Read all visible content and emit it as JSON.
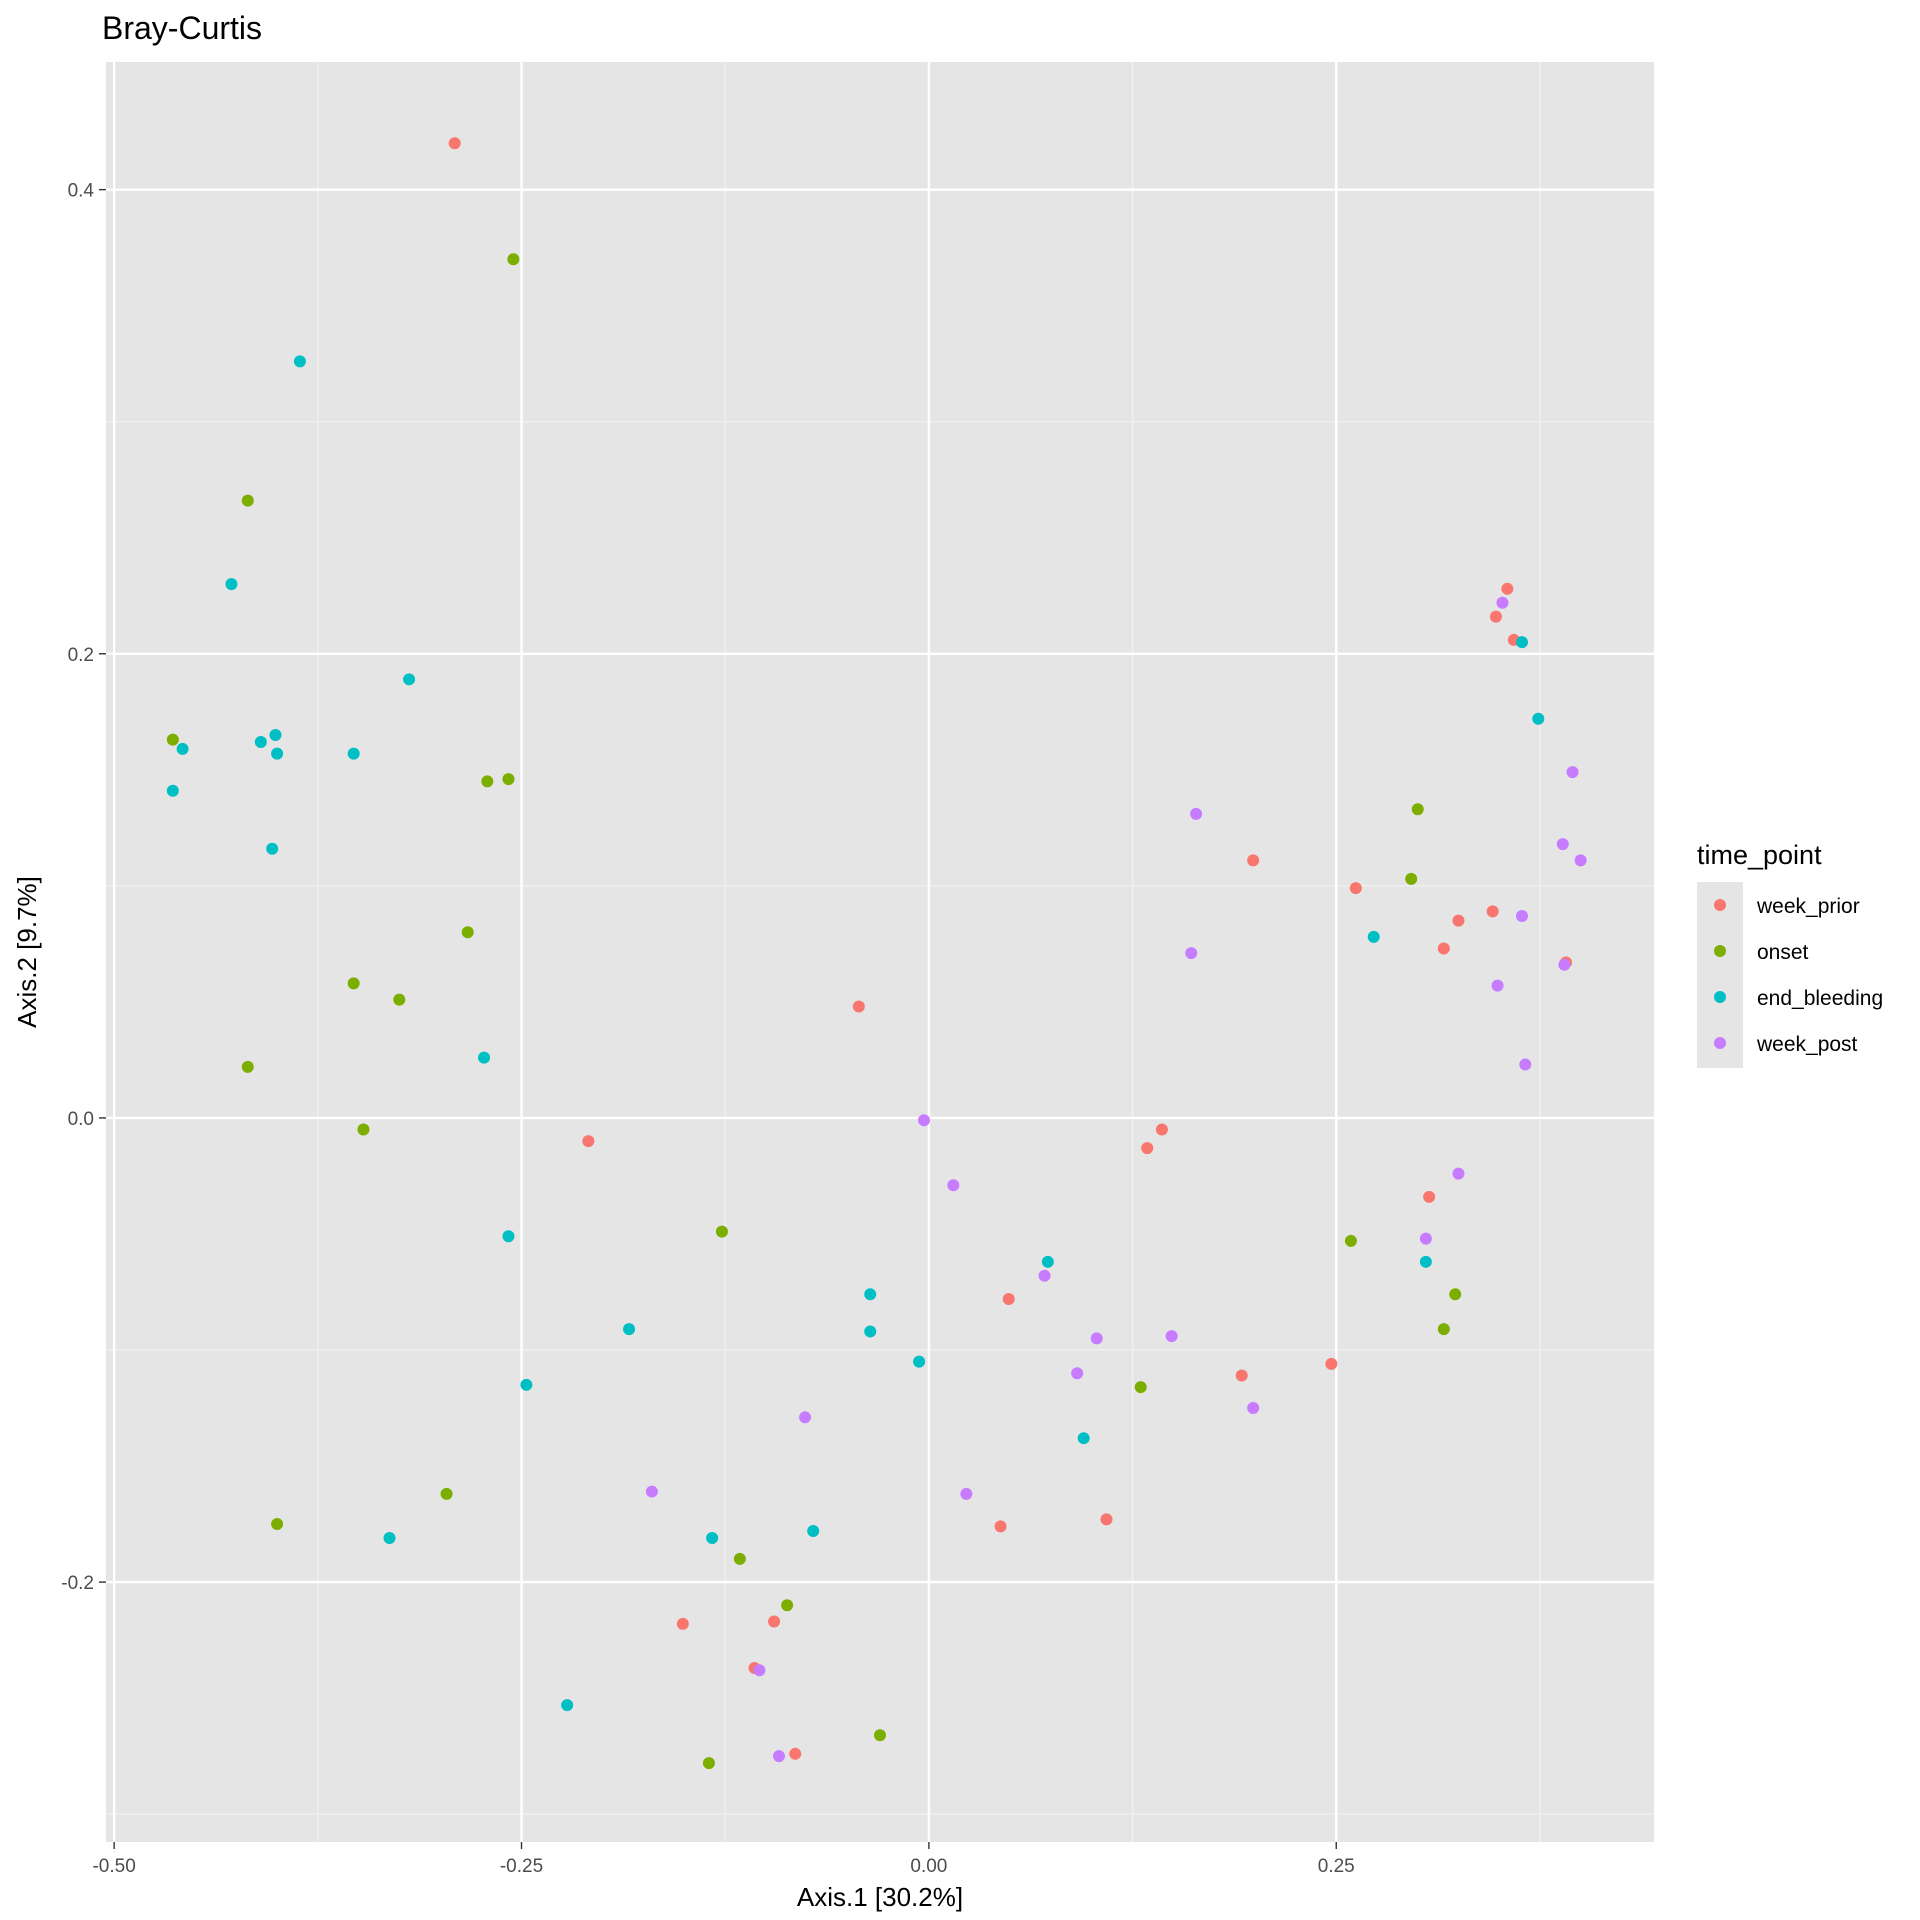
{
  "chart_data": {
    "type": "scatter",
    "title": "Bray-Curtis",
    "xlabel": "Axis.1   [30.2%]",
    "ylabel": "Axis.2   [9.7%]",
    "xlim": [
      -0.505,
      0.445
    ],
    "ylim": [
      -0.312,
      0.455
    ],
    "x_ticks": [
      -0.5,
      -0.25,
      0.0,
      0.25
    ],
    "x_tick_labels": [
      "-0.50",
      "-0.25",
      "0.00",
      "0.25"
    ],
    "y_ticks": [
      -0.2,
      0.0,
      0.2,
      0.4
    ],
    "y_tick_labels": [
      "-0.2",
      "0.0",
      "0.2",
      "0.4"
    ],
    "grid": true,
    "panel_background": "#e5e5e5",
    "legend": {
      "title": "time_point",
      "position": "right"
    },
    "series": [
      {
        "name": "week_prior",
        "color": "#F8766D",
        "points": [
          [
            -0.291,
            0.42
          ],
          [
            -0.043,
            0.048
          ],
          [
            -0.209,
            -0.01
          ],
          [
            0.199,
            0.111
          ],
          [
            0.262,
            0.099
          ],
          [
            0.325,
            0.085
          ],
          [
            0.346,
            0.089
          ],
          [
            0.316,
            0.073
          ],
          [
            0.391,
            0.067
          ],
          [
            0.348,
            0.216
          ],
          [
            0.355,
            0.228
          ],
          [
            0.359,
            0.206
          ],
          [
            0.143,
            -0.005
          ],
          [
            0.134,
            -0.013
          ],
          [
            0.307,
            -0.034
          ],
          [
            0.049,
            -0.078
          ],
          [
            0.192,
            -0.111
          ],
          [
            0.247,
            -0.106
          ],
          [
            0.044,
            -0.176
          ],
          [
            0.109,
            -0.173
          ],
          [
            -0.151,
            -0.218
          ],
          [
            -0.095,
            -0.217
          ],
          [
            -0.107,
            -0.237
          ],
          [
            -0.082,
            -0.274
          ]
        ]
      },
      {
        "name": "onset",
        "color": "#7CAE00",
        "points": [
          [
            -0.255,
            0.37
          ],
          [
            -0.418,
            0.266
          ],
          [
            -0.464,
            0.163
          ],
          [
            -0.271,
            0.145
          ],
          [
            -0.258,
            0.146
          ],
          [
            -0.283,
            0.08
          ],
          [
            -0.353,
            0.058
          ],
          [
            -0.325,
            0.051
          ],
          [
            -0.418,
            0.022
          ],
          [
            -0.347,
            -0.005
          ],
          [
            -0.127,
            -0.049
          ],
          [
            -0.296,
            -0.162
          ],
          [
            -0.4,
            -0.175
          ],
          [
            -0.116,
            -0.19
          ],
          [
            -0.087,
            -0.21
          ],
          [
            -0.03,
            -0.266
          ],
          [
            -0.135,
            -0.278
          ],
          [
            0.13,
            -0.116
          ],
          [
            0.259,
            -0.053
          ],
          [
            0.3,
            0.133
          ],
          [
            0.296,
            0.103
          ],
          [
            0.323,
            -0.076
          ],
          [
            0.316,
            -0.091
          ]
        ]
      },
      {
        "name": "end_bleeding",
        "color": "#00BFC4",
        "points": [
          [
            -0.386,
            0.326
          ],
          [
            -0.428,
            0.23
          ],
          [
            -0.319,
            0.189
          ],
          [
            -0.458,
            0.159
          ],
          [
            -0.464,
            0.141
          ],
          [
            -0.41,
            0.162
          ],
          [
            -0.401,
            0.165
          ],
          [
            -0.4,
            0.157
          ],
          [
            -0.353,
            0.157
          ],
          [
            -0.403,
            0.116
          ],
          [
            -0.273,
            0.026
          ],
          [
            -0.258,
            -0.051
          ],
          [
            -0.184,
            -0.091
          ],
          [
            -0.247,
            -0.115
          ],
          [
            -0.331,
            -0.181
          ],
          [
            -0.222,
            -0.253
          ],
          [
            -0.133,
            -0.181
          ],
          [
            -0.071,
            -0.178
          ],
          [
            -0.036,
            -0.076
          ],
          [
            -0.036,
            -0.092
          ],
          [
            -0.006,
            -0.105
          ],
          [
            0.073,
            -0.062
          ],
          [
            0.095,
            -0.138
          ],
          [
            0.273,
            0.078
          ],
          [
            0.305,
            -0.062
          ],
          [
            0.364,
            0.205
          ],
          [
            0.374,
            0.172
          ]
        ]
      },
      {
        "name": "week_post",
        "color": "#C77CFF",
        "points": [
          [
            -0.003,
            -0.001
          ],
          [
            0.015,
            -0.029
          ],
          [
            0.071,
            -0.068
          ],
          [
            0.103,
            -0.095
          ],
          [
            0.149,
            -0.094
          ],
          [
            0.091,
            -0.11
          ],
          [
            0.199,
            -0.125
          ],
          [
            -0.076,
            -0.129
          ],
          [
            -0.17,
            -0.161
          ],
          [
            0.023,
            -0.162
          ],
          [
            -0.104,
            -0.238
          ],
          [
            -0.092,
            -0.275
          ],
          [
            0.164,
            0.131
          ],
          [
            0.161,
            0.071
          ],
          [
            0.352,
            0.222
          ],
          [
            0.395,
            0.149
          ],
          [
            0.389,
            0.118
          ],
          [
            0.4,
            0.111
          ],
          [
            0.364,
            0.087
          ],
          [
            0.349,
            0.057
          ],
          [
            0.39,
            0.066
          ],
          [
            0.366,
            0.023
          ],
          [
            0.325,
            -0.024
          ],
          [
            0.305,
            -0.052
          ]
        ]
      }
    ]
  }
}
